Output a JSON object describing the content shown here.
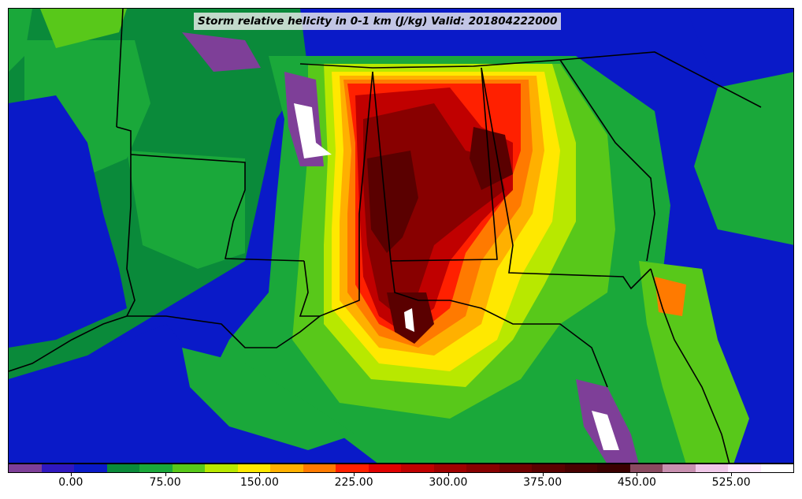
{
  "title": "Storm relative helicity in 0-1 km (J/kg) Valid: 201804222000",
  "colorbar": {
    "colors": [
      "#7e3f98",
      "#3018c0",
      "#0a1ac8",
      "#0a8a3a",
      "#1aa83a",
      "#58c81a",
      "#b8e800",
      "#ffe800",
      "#ffb000",
      "#ff7a00",
      "#ff2000",
      "#e00000",
      "#c00000",
      "#a00000",
      "#880000",
      "#700000",
      "#5a0000",
      "#480000",
      "#3a0000",
      "#8a4a60",
      "#c890b0",
      "#f0c8e8",
      "#ffe8ff",
      "#ffffff"
    ],
    "tick_labels": [
      "0.00",
      "75.00",
      "150.00",
      "225.00",
      "300.00",
      "375.00",
      "450.00",
      "525.00"
    ],
    "tick_values": [
      0,
      75,
      150,
      225,
      300,
      375,
      450,
      525
    ],
    "vmin": -50,
    "vmax": 575
  },
  "map": {
    "region": "Southeastern United States and Gulf of Mexico",
    "background_color": "#0a1ac8",
    "boundary_color": "#000000"
  }
}
